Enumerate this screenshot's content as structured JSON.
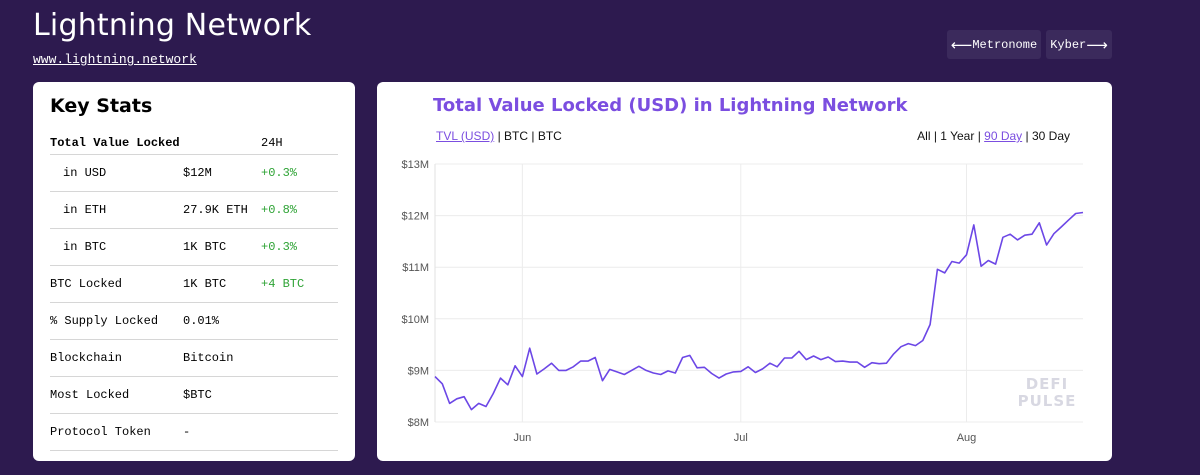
{
  "header": {
    "title": "Lightning Network",
    "url": "www.lightning.network",
    "prev_label": "Metronome",
    "next_label": "Kyber"
  },
  "stats": {
    "title": "Key Stats",
    "header": {
      "label": "Total Value Locked",
      "period": "24H"
    },
    "rows": [
      {
        "label": "in USD",
        "value": "$12M",
        "change": "+0.3%",
        "indent": true
      },
      {
        "label": "in ETH",
        "value": "27.9K ETH",
        "change": "+0.8%",
        "indent": true
      },
      {
        "label": "in BTC",
        "value": "1K BTC",
        "change": "+0.3%",
        "indent": true
      },
      {
        "label": "BTC Locked",
        "value": "1K BTC",
        "change": "+4 BTC",
        "indent": false
      },
      {
        "label": "% Supply Locked",
        "value": "0.01%",
        "change": "",
        "indent": false
      },
      {
        "label": "Blockchain",
        "value": "Bitcoin",
        "change": "",
        "indent": false
      },
      {
        "label": "Most Locked",
        "value": "$BTC",
        "change": "",
        "indent": false
      },
      {
        "label": "Protocol Token",
        "value": "-",
        "change": "",
        "indent": false
      }
    ]
  },
  "chart_card": {
    "title": "Total Value Locked (USD) in Lightning Network",
    "unit_options": [
      "TVL (USD)",
      "BTC",
      "BTC"
    ],
    "active_unit": "TVL (USD)",
    "range_options": [
      "All",
      "1 Year",
      "90 Day",
      "30 Day"
    ],
    "active_range": "90 Day",
    "watermark": [
      "DEFI",
      "PULSE"
    ]
  },
  "colors": {
    "accent": "#7b4ee0",
    "line": "#6c47e6",
    "positive": "#2ea335",
    "background": "#2d1a4f"
  },
  "chart_data": {
    "type": "line",
    "title": "Total Value Locked (USD) in Lightning Network",
    "xlabel": "",
    "ylabel": "",
    "ylim": [
      8,
      13
    ],
    "y_unit": "$M",
    "y_ticks": [
      "$8M",
      "$9M",
      "$10M",
      "$11M",
      "$12M",
      "$13M"
    ],
    "x_ticks": [
      {
        "label": "Jun",
        "day": 12
      },
      {
        "label": "Jul",
        "day": 42
      },
      {
        "label": "Aug",
        "day": 73
      }
    ],
    "grid": true,
    "series": [
      {
        "values": [
          8.88,
          8.74,
          8.36,
          8.45,
          8.49,
          8.24,
          8.36,
          8.3,
          8.55,
          8.85,
          8.72,
          9.09,
          8.88,
          9.43,
          8.93,
          9.03,
          9.14,
          9.0,
          9.0,
          9.07,
          9.18,
          9.18,
          9.25,
          8.8,
          9.02,
          8.97,
          8.92,
          9.0,
          9.08,
          9.0,
          8.95,
          8.92,
          8.99,
          8.95,
          9.25,
          9.29,
          9.05,
          9.06,
          8.94,
          8.85,
          8.93,
          8.97,
          8.98,
          9.07,
          8.96,
          9.03,
          9.14,
          9.07,
          9.24,
          9.24,
          9.37,
          9.21,
          9.28,
          9.21,
          9.26,
          9.17,
          9.18,
          9.16,
          9.16,
          9.06,
          9.15,
          9.13,
          9.14,
          9.32,
          9.46,
          9.52,
          9.48,
          9.58,
          9.89,
          10.96,
          10.89,
          11.11,
          11.08,
          11.24,
          11.82,
          11.02,
          11.13,
          11.06,
          11.58,
          11.64,
          11.53,
          11.62,
          11.64,
          11.86,
          11.43,
          11.65,
          11.78,
          11.91,
          12.04,
          12.06
        ]
      }
    ]
  }
}
